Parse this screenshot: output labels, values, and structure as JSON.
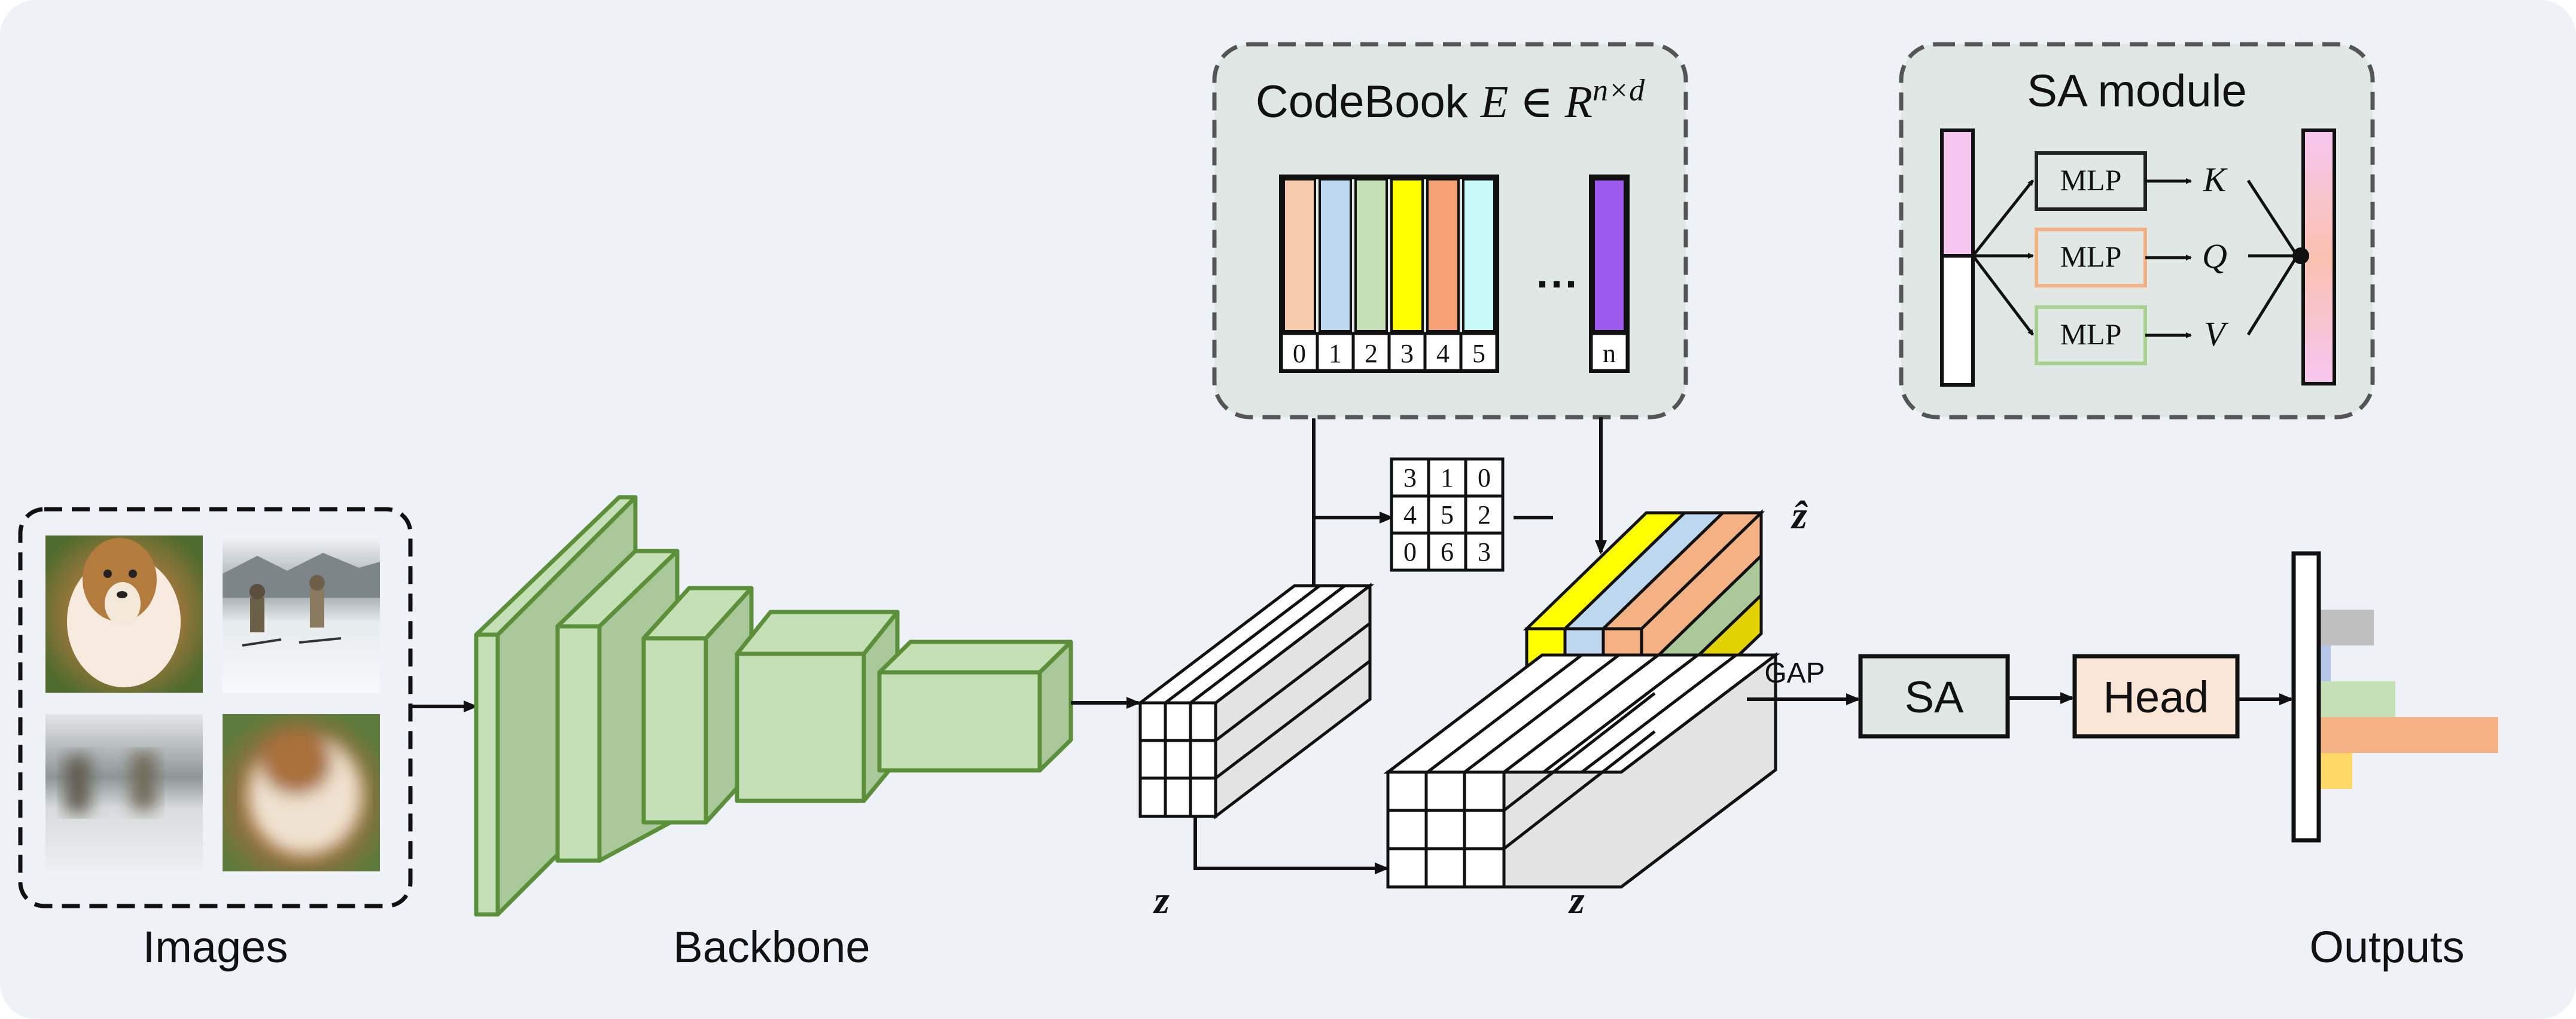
{
  "labels": {
    "images": "Images",
    "backbone": "Backbone",
    "outputs": "Outputs",
    "gap": "GAP",
    "sa": "SA",
    "head": "Head",
    "z_left": "z",
    "z_mid": "z",
    "z_hat": "ẑ"
  },
  "codebook": {
    "title_prefix": "CodeBook ",
    "title_math": "E ∈ R",
    "title_sup": "n×d",
    "ellipsis": "···",
    "indices": [
      "0",
      "1",
      "2",
      "3",
      "4",
      "5"
    ],
    "last_index": "n",
    "colors": [
      "#f8cbad",
      "#bdd7ee",
      "#c5e0b4",
      "#ffff00",
      "#f4a074",
      "#c8fbf8"
    ],
    "last_color": "#9b59f0"
  },
  "sa_module": {
    "title": "SA module",
    "mlp_label": "MLP",
    "outputs": [
      "K",
      "Q",
      "V"
    ],
    "mlp_border_colors": [
      "#222222",
      "#f4b183",
      "#a9d18e"
    ]
  },
  "index_grid": {
    "rows": [
      [
        "3",
        "1",
        "0"
      ],
      [
        "4",
        "5",
        "2"
      ],
      [
        "0",
        "6",
        "3"
      ]
    ]
  },
  "colors": {
    "background": "#eef1f8",
    "panel_fill": "#dfe8e4",
    "backbone_front": "#c5e0b4",
    "backbone_side": "#a9c99a",
    "backbone_stroke": "#5b8f3a",
    "sa_fill": "#dfe8e4",
    "head_fill": "#fbe5d6"
  },
  "output_bars": [
    {
      "color": "#bfbfbf",
      "value": 0.23
    },
    {
      "color": "#b4c7e7",
      "value": 0.05
    },
    {
      "color": "#c5e0b4",
      "value": 0.32
    },
    {
      "color": "#f4b183",
      "value": 0.75
    },
    {
      "color": "#ffd966",
      "value": 0.14
    }
  ]
}
